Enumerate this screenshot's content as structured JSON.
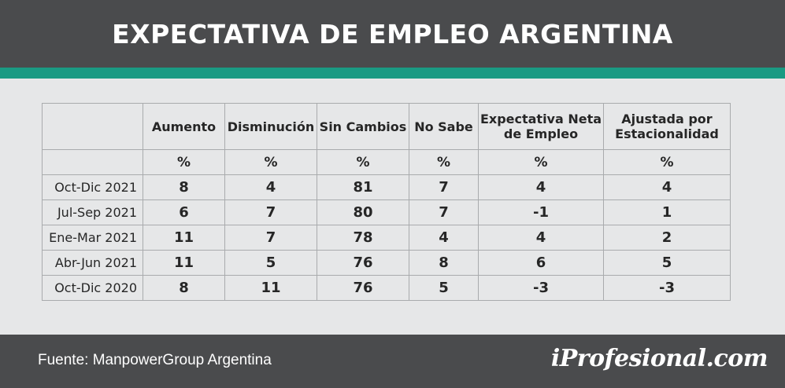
{
  "title": "EXPECTATIVA DE EMPLEO ARGENTINA",
  "colors": {
    "header_bg": "#4a4b4d",
    "accent": "#1a9a83",
    "background": "#e6e7e8"
  },
  "chart_data": {
    "type": "table",
    "title": "EXPECTATIVA DE EMPLEO ARGENTINA",
    "columns": [
      {
        "header": "Aumento",
        "unit": "%"
      },
      {
        "header": "Disminución",
        "unit": "%"
      },
      {
        "header": "Sin Cambios",
        "unit": "%"
      },
      {
        "header": "No Sabe",
        "unit": "%"
      },
      {
        "header": "Expectativa Neta de Empleo",
        "unit": "%"
      },
      {
        "header": "Ajustada por Estacionalidad",
        "unit": "%"
      }
    ],
    "rows": [
      {
        "label": "Oct-Dic 2021",
        "values": [
          "8",
          "4",
          "81",
          "7",
          "4",
          "4"
        ]
      },
      {
        "label": "Jul-Sep 2021",
        "values": [
          "6",
          "7",
          "80",
          "7",
          "-1",
          "1"
        ]
      },
      {
        "label": "Ene-Mar 2021",
        "values": [
          "11",
          "7",
          "78",
          "4",
          "4",
          "2"
        ]
      },
      {
        "label": "Abr-Jun 2021",
        "values": [
          "11",
          "5",
          "76",
          "8",
          "6",
          "5"
        ]
      },
      {
        "label": "Oct-Dic 2020",
        "values": [
          "8",
          "11",
          "76",
          "5",
          "-3",
          "-3"
        ]
      }
    ]
  },
  "footer": {
    "source": "Fuente: ManpowerGroup Argentina",
    "brand": "iProfesional.com"
  }
}
